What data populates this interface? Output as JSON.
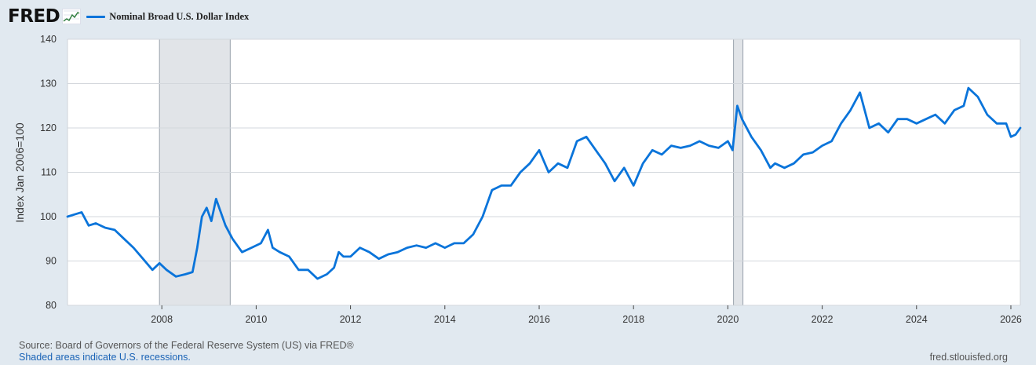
{
  "header": {
    "logo": "FRED",
    "logo_icon": "line-graph-icon",
    "series_label": "Nominal Broad U.S. Dollar Index",
    "series_color": "#0a74da"
  },
  "footer": {
    "source": "Source: Board of Governors of the Federal Reserve System (US) via FRED®",
    "shaded_note": "Shaded areas indicate U.S. recessions.",
    "site": "fred.stlouisfed.org"
  },
  "chart_data": {
    "type": "line",
    "title": "",
    "xlabel": "",
    "ylabel": "Index Jan 2006=100",
    "xlim": [
      2006.0,
      2026.2
    ],
    "ylim": [
      80,
      140
    ],
    "grid": true,
    "legend": "top-left",
    "y_ticks": [
      80,
      90,
      100,
      110,
      120,
      130,
      140
    ],
    "x_ticks": [
      2008,
      2010,
      2012,
      2014,
      2016,
      2018,
      2020,
      2022,
      2024,
      2026
    ],
    "recessions": [
      {
        "start": 2007.95,
        "end": 2009.45
      },
      {
        "start": 2020.12,
        "end": 2020.32
      }
    ],
    "series": [
      {
        "name": "Nominal Broad U.S. Dollar Index",
        "color": "#0a74da",
        "x": [
          2006.0,
          2006.15,
          2006.3,
          2006.45,
          2006.6,
          2006.8,
          2007.0,
          2007.2,
          2007.4,
          2007.6,
          2007.8,
          2007.95,
          2008.1,
          2008.3,
          2008.5,
          2008.65,
          2008.75,
          2008.85,
          2008.95,
          2009.05,
          2009.15,
          2009.25,
          2009.35,
          2009.5,
          2009.7,
          2009.9,
          2010.1,
          2010.25,
          2010.35,
          2010.5,
          2010.7,
          2010.9,
          2011.1,
          2011.3,
          2011.5,
          2011.65,
          2011.75,
          2011.85,
          2012.0,
          2012.2,
          2012.4,
          2012.6,
          2012.8,
          2013.0,
          2013.2,
          2013.4,
          2013.6,
          2013.8,
          2014.0,
          2014.2,
          2014.4,
          2014.6,
          2014.8,
          2015.0,
          2015.2,
          2015.4,
          2015.6,
          2015.8,
          2016.0,
          2016.2,
          2016.4,
          2016.6,
          2016.8,
          2017.0,
          2017.2,
          2017.4,
          2017.6,
          2017.8,
          2018.0,
          2018.2,
          2018.4,
          2018.6,
          2018.8,
          2019.0,
          2019.2,
          2019.4,
          2019.6,
          2019.8,
          2020.0,
          2020.1,
          2020.2,
          2020.3,
          2020.5,
          2020.7,
          2020.9,
          2021.0,
          2021.2,
          2021.4,
          2021.6,
          2021.8,
          2022.0,
          2022.2,
          2022.4,
          2022.6,
          2022.8,
          2023.0,
          2023.2,
          2023.4,
          2023.6,
          2023.8,
          2024.0,
          2024.2,
          2024.4,
          2024.6,
          2024.8,
          2025.0,
          2025.1,
          2025.3,
          2025.5,
          2025.7,
          2025.9,
          2026.0,
          2026.1,
          2026.2
        ],
        "values": [
          100,
          100.5,
          101,
          98,
          98.5,
          97.5,
          97,
          95,
          93,
          90.5,
          88,
          89.5,
          88,
          86.5,
          87,
          87.5,
          93,
          100,
          102,
          99,
          104,
          101,
          98,
          95,
          92,
          93,
          94,
          97,
          93,
          92,
          91,
          88,
          88,
          86,
          87,
          88.5,
          92,
          91,
          91,
          93,
          92,
          90.5,
          91.5,
          92,
          93,
          93.5,
          93,
          94,
          93,
          94,
          94,
          96,
          100,
          106,
          107,
          107,
          110,
          112,
          115,
          110,
          112,
          111,
          117,
          118,
          115,
          112,
          108,
          111,
          107,
          112,
          115,
          114,
          116,
          115.5,
          116,
          117,
          116,
          115.5,
          117,
          115,
          125,
          122,
          118,
          115,
          111,
          112,
          111,
          112,
          114,
          114.5,
          116,
          117,
          121,
          124,
          128,
          120,
          121,
          119,
          122,
          122,
          121,
          122,
          123,
          121,
          124,
          125,
          129,
          127,
          123,
          121,
          121,
          118,
          118.5,
          120
        ]
      }
    ]
  }
}
